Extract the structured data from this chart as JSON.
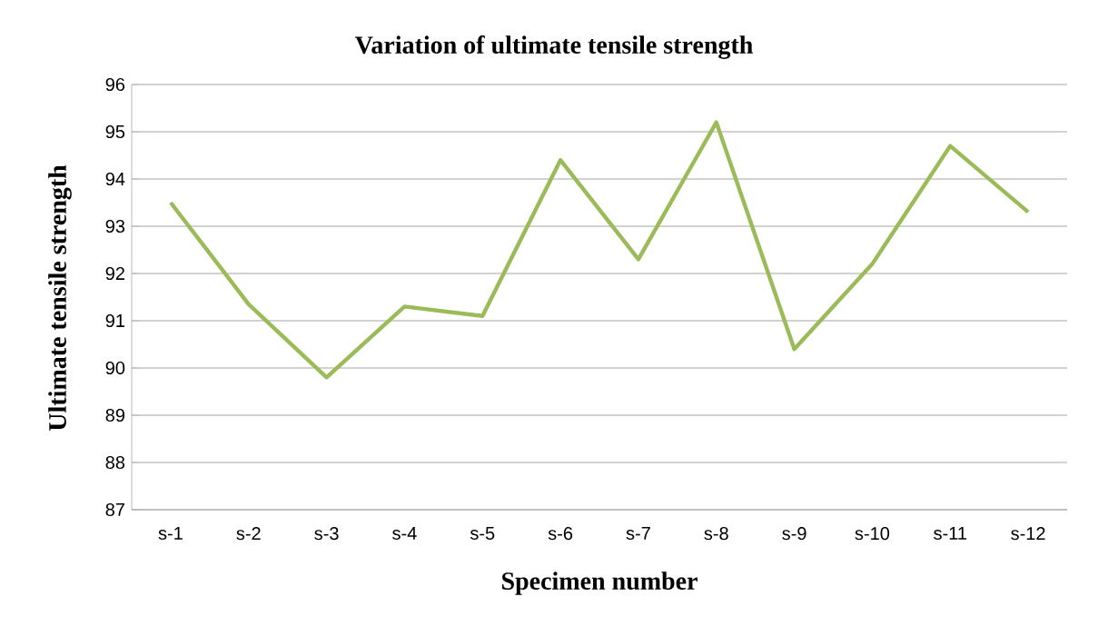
{
  "chart_data": {
    "type": "line",
    "title": "Variation of ultimate tensile strength",
    "xlabel": "Specimen number",
    "ylabel": "Ultimate tensile strength",
    "categories": [
      "s-1",
      "s-2",
      "s-3",
      "s-4",
      "s-5",
      "s-6",
      "s-7",
      "s-8",
      "s-9",
      "s-10",
      "s-11",
      "s-12"
    ],
    "series": [
      {
        "color": "#9bbb59",
        "values": [
          93.5,
          91.35,
          89.8,
          91.3,
          91.1,
          94.4,
          92.3,
          95.2,
          90.4,
          92.2,
          94.7,
          93.3
        ]
      }
    ],
    "ylim": [
      87,
      96
    ],
    "yticks": [
      87,
      88,
      89,
      90,
      91,
      92,
      93,
      94,
      95,
      96
    ],
    "grid": "y",
    "marker": "none",
    "line_style": "solid"
  }
}
